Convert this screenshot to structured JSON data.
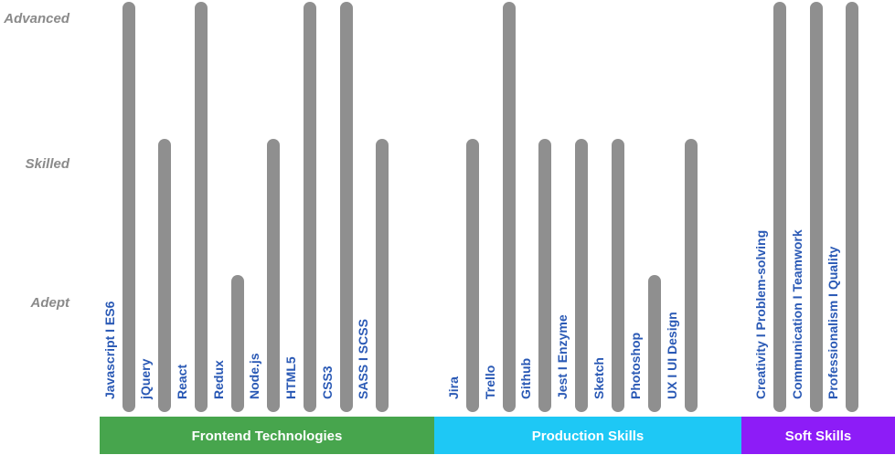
{
  "chart_data": {
    "type": "bar",
    "orientation": "vertical",
    "levels": [
      "Adept",
      "Skilled",
      "Advanced"
    ],
    "categories": [
      "Javascript I ES6",
      "jQuery",
      "React",
      "Redux",
      "Node.js",
      "HTML5",
      "CSS3",
      "SASS I SCSS",
      "Jira",
      "Trello",
      "Github",
      "Jest I Enzyme",
      "Sketch",
      "Photoshop",
      "UX I UI Design",
      "Creativity I Problem-solving",
      "Communication I Teamwork",
      "Professionalism I Quality"
    ],
    "values": [
      3,
      2,
      3,
      1,
      2,
      3,
      3,
      2,
      2,
      3,
      2,
      2,
      2,
      1,
      2,
      3,
      3,
      3
    ],
    "groups": [
      {
        "name": "Frontend Technologies",
        "color": "#47a54d",
        "members": [
          "Javascript I ES6",
          "jQuery",
          "React",
          "Redux",
          "Node.js",
          "HTML5",
          "CSS3",
          "SASS I SCSS"
        ]
      },
      {
        "name": "Production Skills",
        "color": "#1ec8f5",
        "members": [
          "Jira",
          "Trello",
          "Github",
          "Jest I Enzyme",
          "Sketch",
          "Photoshop",
          "UX I UI Design"
        ]
      },
      {
        "name": "Soft Skills",
        "color": "#8d1cf7",
        "members": [
          "Creativity I Problem-solving",
          "Communication I Teamwork",
          "Professionalism I Quality"
        ]
      }
    ],
    "bar_color": "#8f8f8f",
    "label_color": "#2a59b5",
    "level_label_color": "#8a8a8a",
    "ylim": [
      0,
      3
    ],
    "grid": false,
    "legend": "none"
  }
}
